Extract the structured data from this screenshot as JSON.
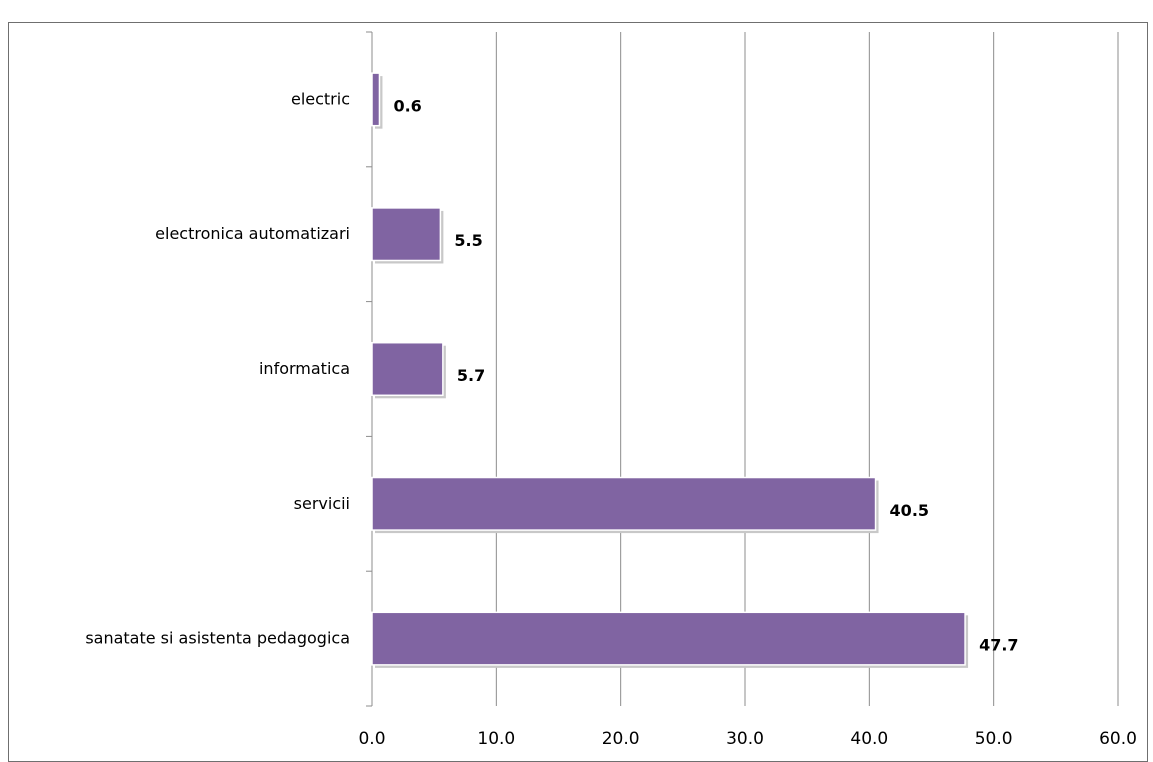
{
  "chart_data": {
    "type": "bar",
    "orientation": "horizontal",
    "title": "",
    "categories": [
      "electric",
      "electronica automatizari",
      "informatica",
      "servicii",
      "sanatate si asistenta pedagogica"
    ],
    "values": [
      0.6,
      5.5,
      5.7,
      40.5,
      47.7
    ],
    "value_labels": [
      "0.6",
      "5.5",
      "5.7",
      "40.5",
      "47.7"
    ],
    "xlim": [
      0,
      60
    ],
    "ticks": [
      0,
      10,
      20,
      30,
      40,
      50,
      60
    ],
    "tick_labels": [
      "0.0",
      "10.0",
      "20.0",
      "30.0",
      "40.0",
      "50.0",
      "60.0"
    ],
    "xlabel": "",
    "ylabel": "",
    "grid": "vertical",
    "legend": "none",
    "bar_color": "#8064a2"
  }
}
